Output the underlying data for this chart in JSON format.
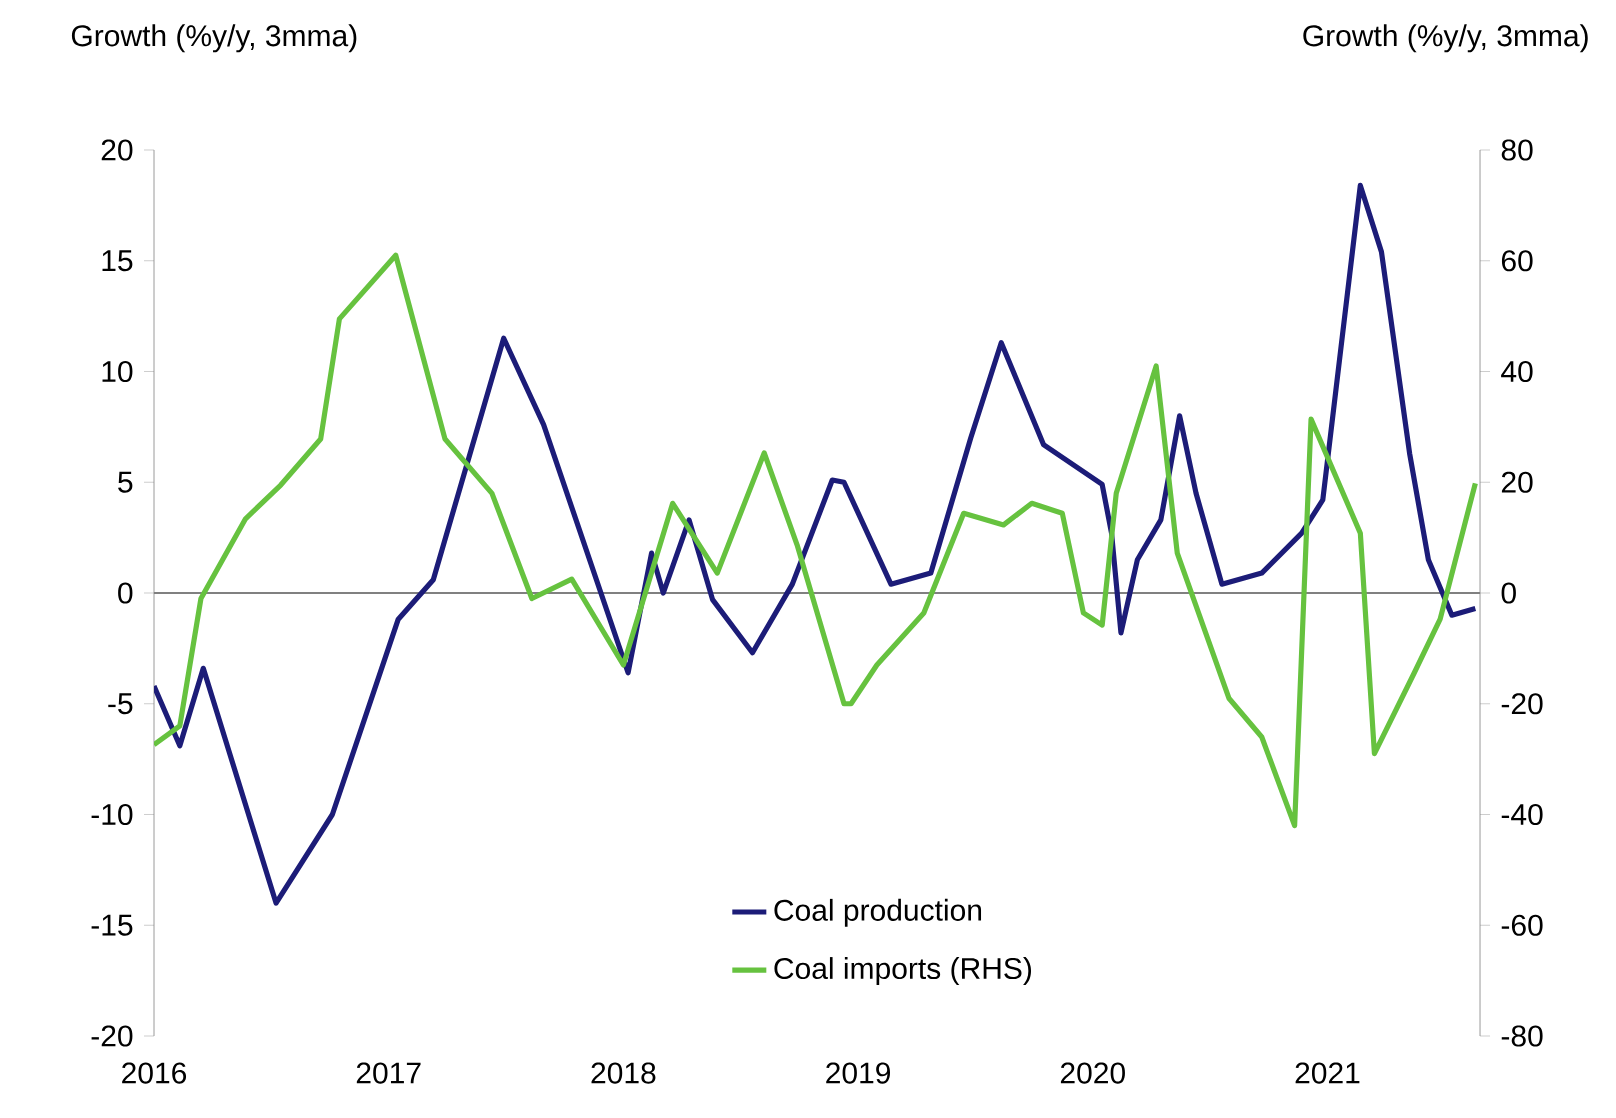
{
  "chart_data": {
    "type": "line",
    "ylabel": "Growth (%y/y, 3mma)",
    "y2label": "Growth (%y/y, 3mma)",
    "xlim": [
      2016,
      2021.65
    ],
    "xticks": [
      2016,
      2017,
      2018,
      2019,
      2020,
      2021
    ],
    "ylim": [
      -20,
      20
    ],
    "yticks": [
      -20,
      -15,
      -10,
      -5,
      0,
      5,
      10,
      15,
      20
    ],
    "y2lim": [
      -80,
      80
    ],
    "y2ticks": [
      -80,
      -60,
      -40,
      -20,
      0,
      20,
      40,
      60,
      80
    ],
    "legend": "bottom",
    "grid": false,
    "ref_lines": [
      {
        "axis": "y",
        "value": 0,
        "color": "#808080"
      }
    ],
    "series": [
      {
        "name": "Coal production",
        "color": "#1c1c78",
        "x": [
          2016.0,
          2016.11,
          2016.21,
          2016.52,
          2016.76,
          2017.04,
          2017.19,
          2017.49,
          2017.66,
          2018.02,
          2018.12,
          2018.17,
          2018.28,
          2018.38,
          2018.55,
          2018.72,
          2018.89,
          2018.94,
          2019.14,
          2019.31,
          2019.48,
          2019.61,
          2019.79,
          2020.04,
          2020.08,
          2020.12,
          2020.19,
          2020.29,
          2020.37,
          2020.44,
          2020.55,
          2020.72,
          2020.89,
          2020.98,
          2021.14,
          2021.23,
          2021.35,
          2021.43,
          2021.53,
          2021.63
        ],
        "values": [
          -4.2,
          -6.9,
          -3.4,
          -14,
          -10,
          -1.2,
          0.6,
          11.5,
          7.6,
          -3.6,
          1.8,
          0,
          3.3,
          -0.3,
          -2.7,
          0.4,
          5.1,
          5,
          0.4,
          0.9,
          7,
          11.3,
          6.7,
          4.9,
          2.7,
          -1.8,
          1.5,
          3.3,
          8,
          4.5,
          0.4,
          0.9,
          2.7,
          4.2,
          18.4,
          15.4,
          6.3,
          1.5,
          -1,
          -0.7
        ]
      },
      {
        "name": "Coal imports (RHS)",
        "color": "#66c23f",
        "axis": "y2",
        "x": [
          2016.0,
          2016.11,
          2016.2,
          2016.39,
          2016.54,
          2016.71,
          2016.79,
          2017.03,
          2017.24,
          2017.44,
          2017.61,
          2017.78,
          2018.0,
          2018.21,
          2018.4,
          2018.6,
          2018.74,
          2018.94,
          2018.97,
          2019.08,
          2019.28,
          2019.45,
          2019.62,
          2019.74,
          2019.87,
          2019.96,
          2020.04,
          2020.1,
          2020.27,
          2020.36,
          2020.58,
          2020.72,
          2020.86,
          2020.93,
          2021.14,
          2021.2,
          2021.37,
          2021.48,
          2021.63
        ],
        "values": [
          -27.4,
          -24,
          -1,
          13.4,
          19.5,
          27.8,
          49.5,
          61,
          27.8,
          18,
          -1,
          2.5,
          -13,
          16.2,
          3.6,
          25.3,
          8.7,
          -20,
          -20,
          -13,
          -3.6,
          14.4,
          12.3,
          16.2,
          14.4,
          -3.6,
          -5.8,
          18,
          41,
          7.2,
          -19,
          -26,
          -42,
          31.4,
          10.8,
          -29,
          -14.4,
          -4.7,
          19.8
        ]
      }
    ]
  }
}
